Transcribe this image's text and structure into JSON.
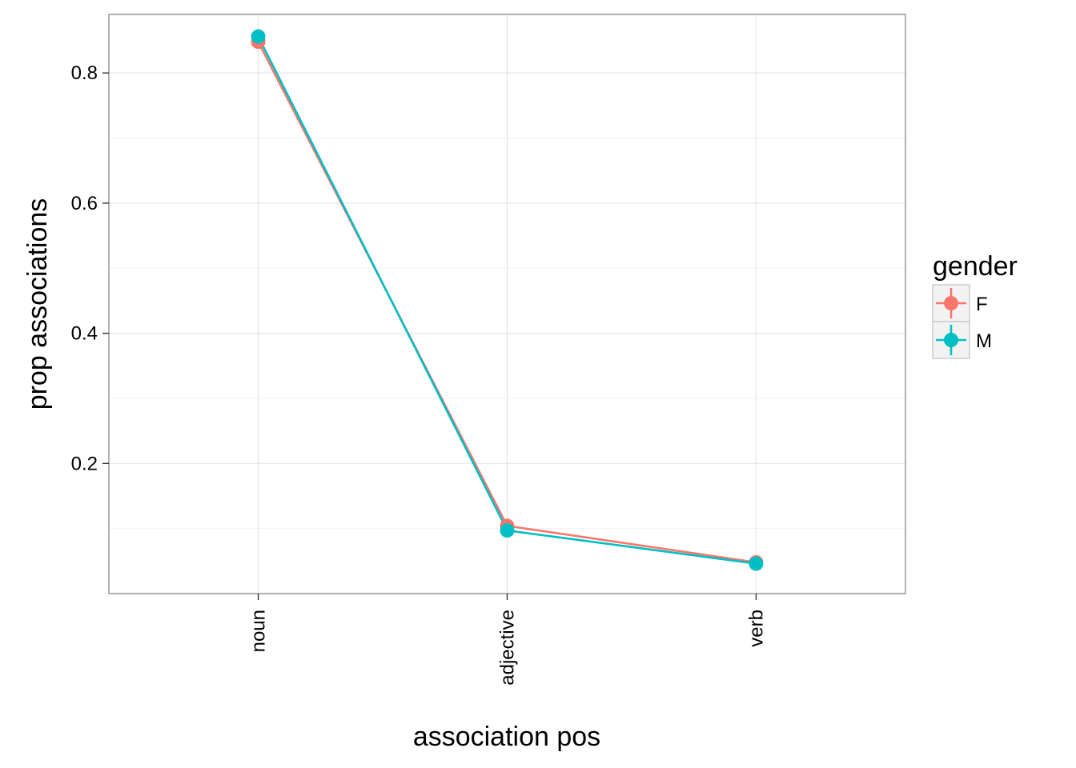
{
  "chart_data": {
    "type": "line",
    "title": "",
    "xlabel": "association pos",
    "ylabel": "prop associations",
    "categories": [
      "noun",
      "adjective",
      "verb"
    ],
    "yticks": [
      0.2,
      0.4,
      0.6,
      0.8
    ],
    "ytick_labels": [
      "0.2",
      "0.4",
      "0.6",
      "0.8"
    ],
    "ylim": [
      0.0,
      0.89
    ],
    "grid": true,
    "legend": {
      "title": "gender",
      "position": "right"
    },
    "series": [
      {
        "name": "F",
        "color": "#F8766D",
        "values": [
          0.848,
          0.104,
          0.048
        ]
      },
      {
        "name": "M",
        "color": "#00BFC4",
        "values": [
          0.856,
          0.097,
          0.046
        ]
      }
    ]
  }
}
